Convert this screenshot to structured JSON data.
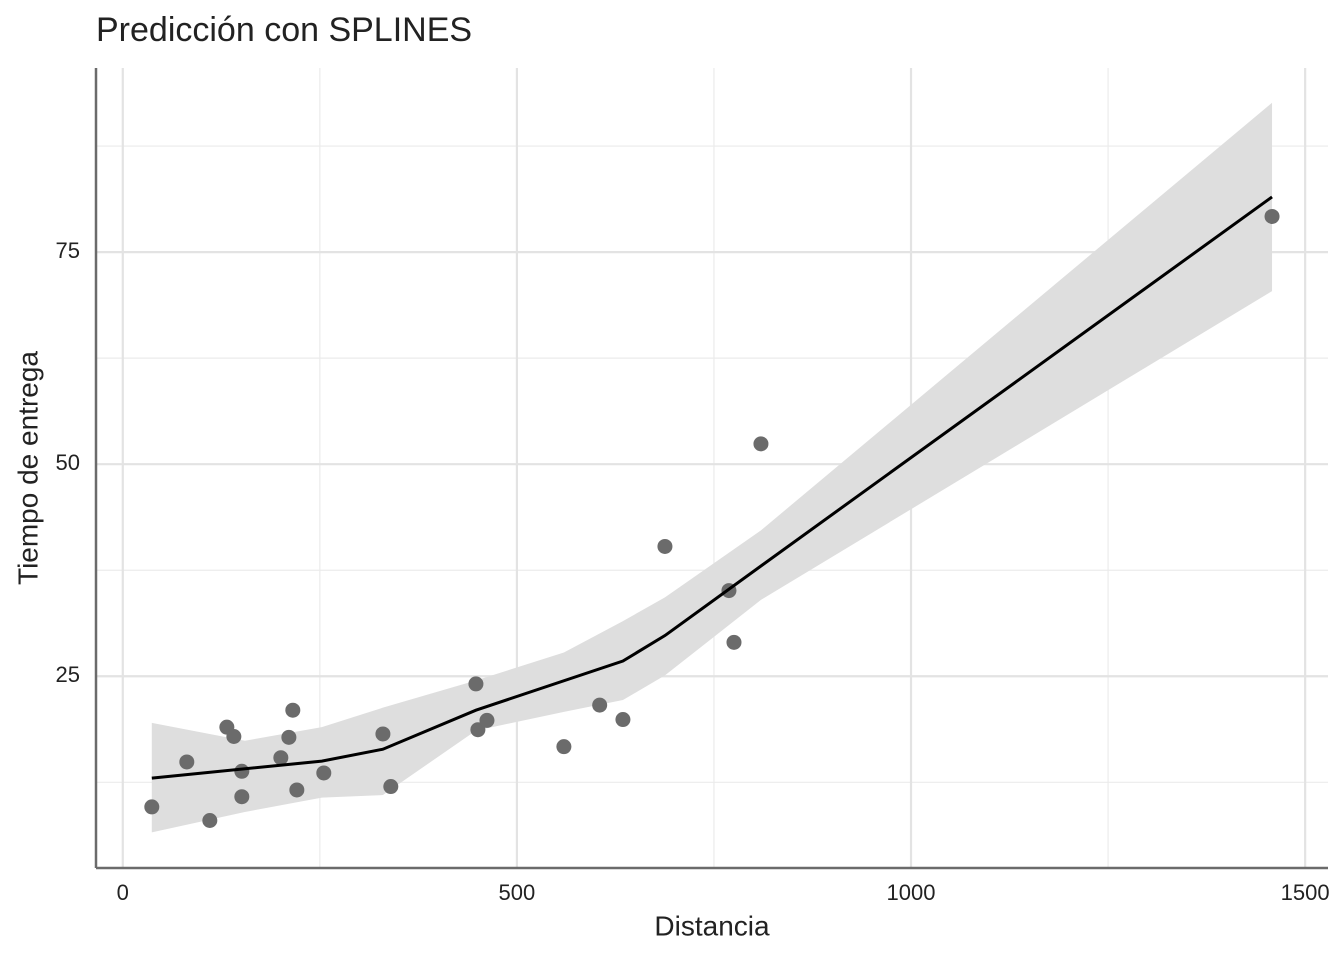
{
  "chart_data": {
    "type": "scatter",
    "title": "Predicción con SPLINES",
    "xlabel": "Distancia",
    "ylabel": "Tiempo de entrega",
    "xlim": [
      -34,
      1529
    ],
    "ylim": [
      2.4,
      96.7
    ],
    "xticks": [
      0,
      500,
      1000,
      1500
    ],
    "yticks": [
      25,
      50,
      75
    ],
    "xminorticks": [
      250,
      750,
      1250
    ],
    "yminorticks": [
      12.5,
      37.5,
      62.5,
      87.5
    ],
    "grid": true,
    "points": {
      "color": "#6b6b6b",
      "x": [
        36.8,
        81.2,
        110.4,
        132,
        140.9,
        151,
        151,
        200.5,
        210.7,
        215.7,
        220.8,
        255,
        330,
        340,
        448,
        450.5,
        462,
        559.6,
        605,
        634.5,
        687.8,
        769,
        775.4,
        809.6,
        1458
      ],
      "y": [
        9.6,
        14.9,
        8.0,
        19.0,
        17.9,
        13.8,
        10.8,
        15.4,
        17.8,
        21.0,
        11.6,
        13.6,
        18.2,
        12.0,
        24.1,
        18.7,
        19.8,
        16.7,
        21.6,
        19.9,
        40.3,
        35.1,
        29.0,
        52.4,
        79.2
      ]
    },
    "fit": {
      "color": "#000000",
      "x": [
        36.8,
        252.5,
        330,
        448,
        634.5,
        687.8,
        809.6,
        1458
      ],
      "y": [
        13.0,
        15.0,
        16.4,
        21.0,
        26.8,
        29.8,
        38.0,
        81.5
      ]
    },
    "band": {
      "color": "#dedede",
      "x": [
        36.8,
        154.8,
        252.5,
        330,
        448,
        559.6,
        634.5,
        687.8,
        809.6,
        1458
      ],
      "upper": [
        19.5,
        17.4,
        19.0,
        21.3,
        24.5,
        27.8,
        31.5,
        34.3,
        42.2,
        92.6
      ],
      "lower": [
        6.6,
        9.0,
        10.7,
        11.0,
        18.6,
        20.8,
        22.2,
        25.1,
        34.0,
        70.4
      ]
    }
  }
}
